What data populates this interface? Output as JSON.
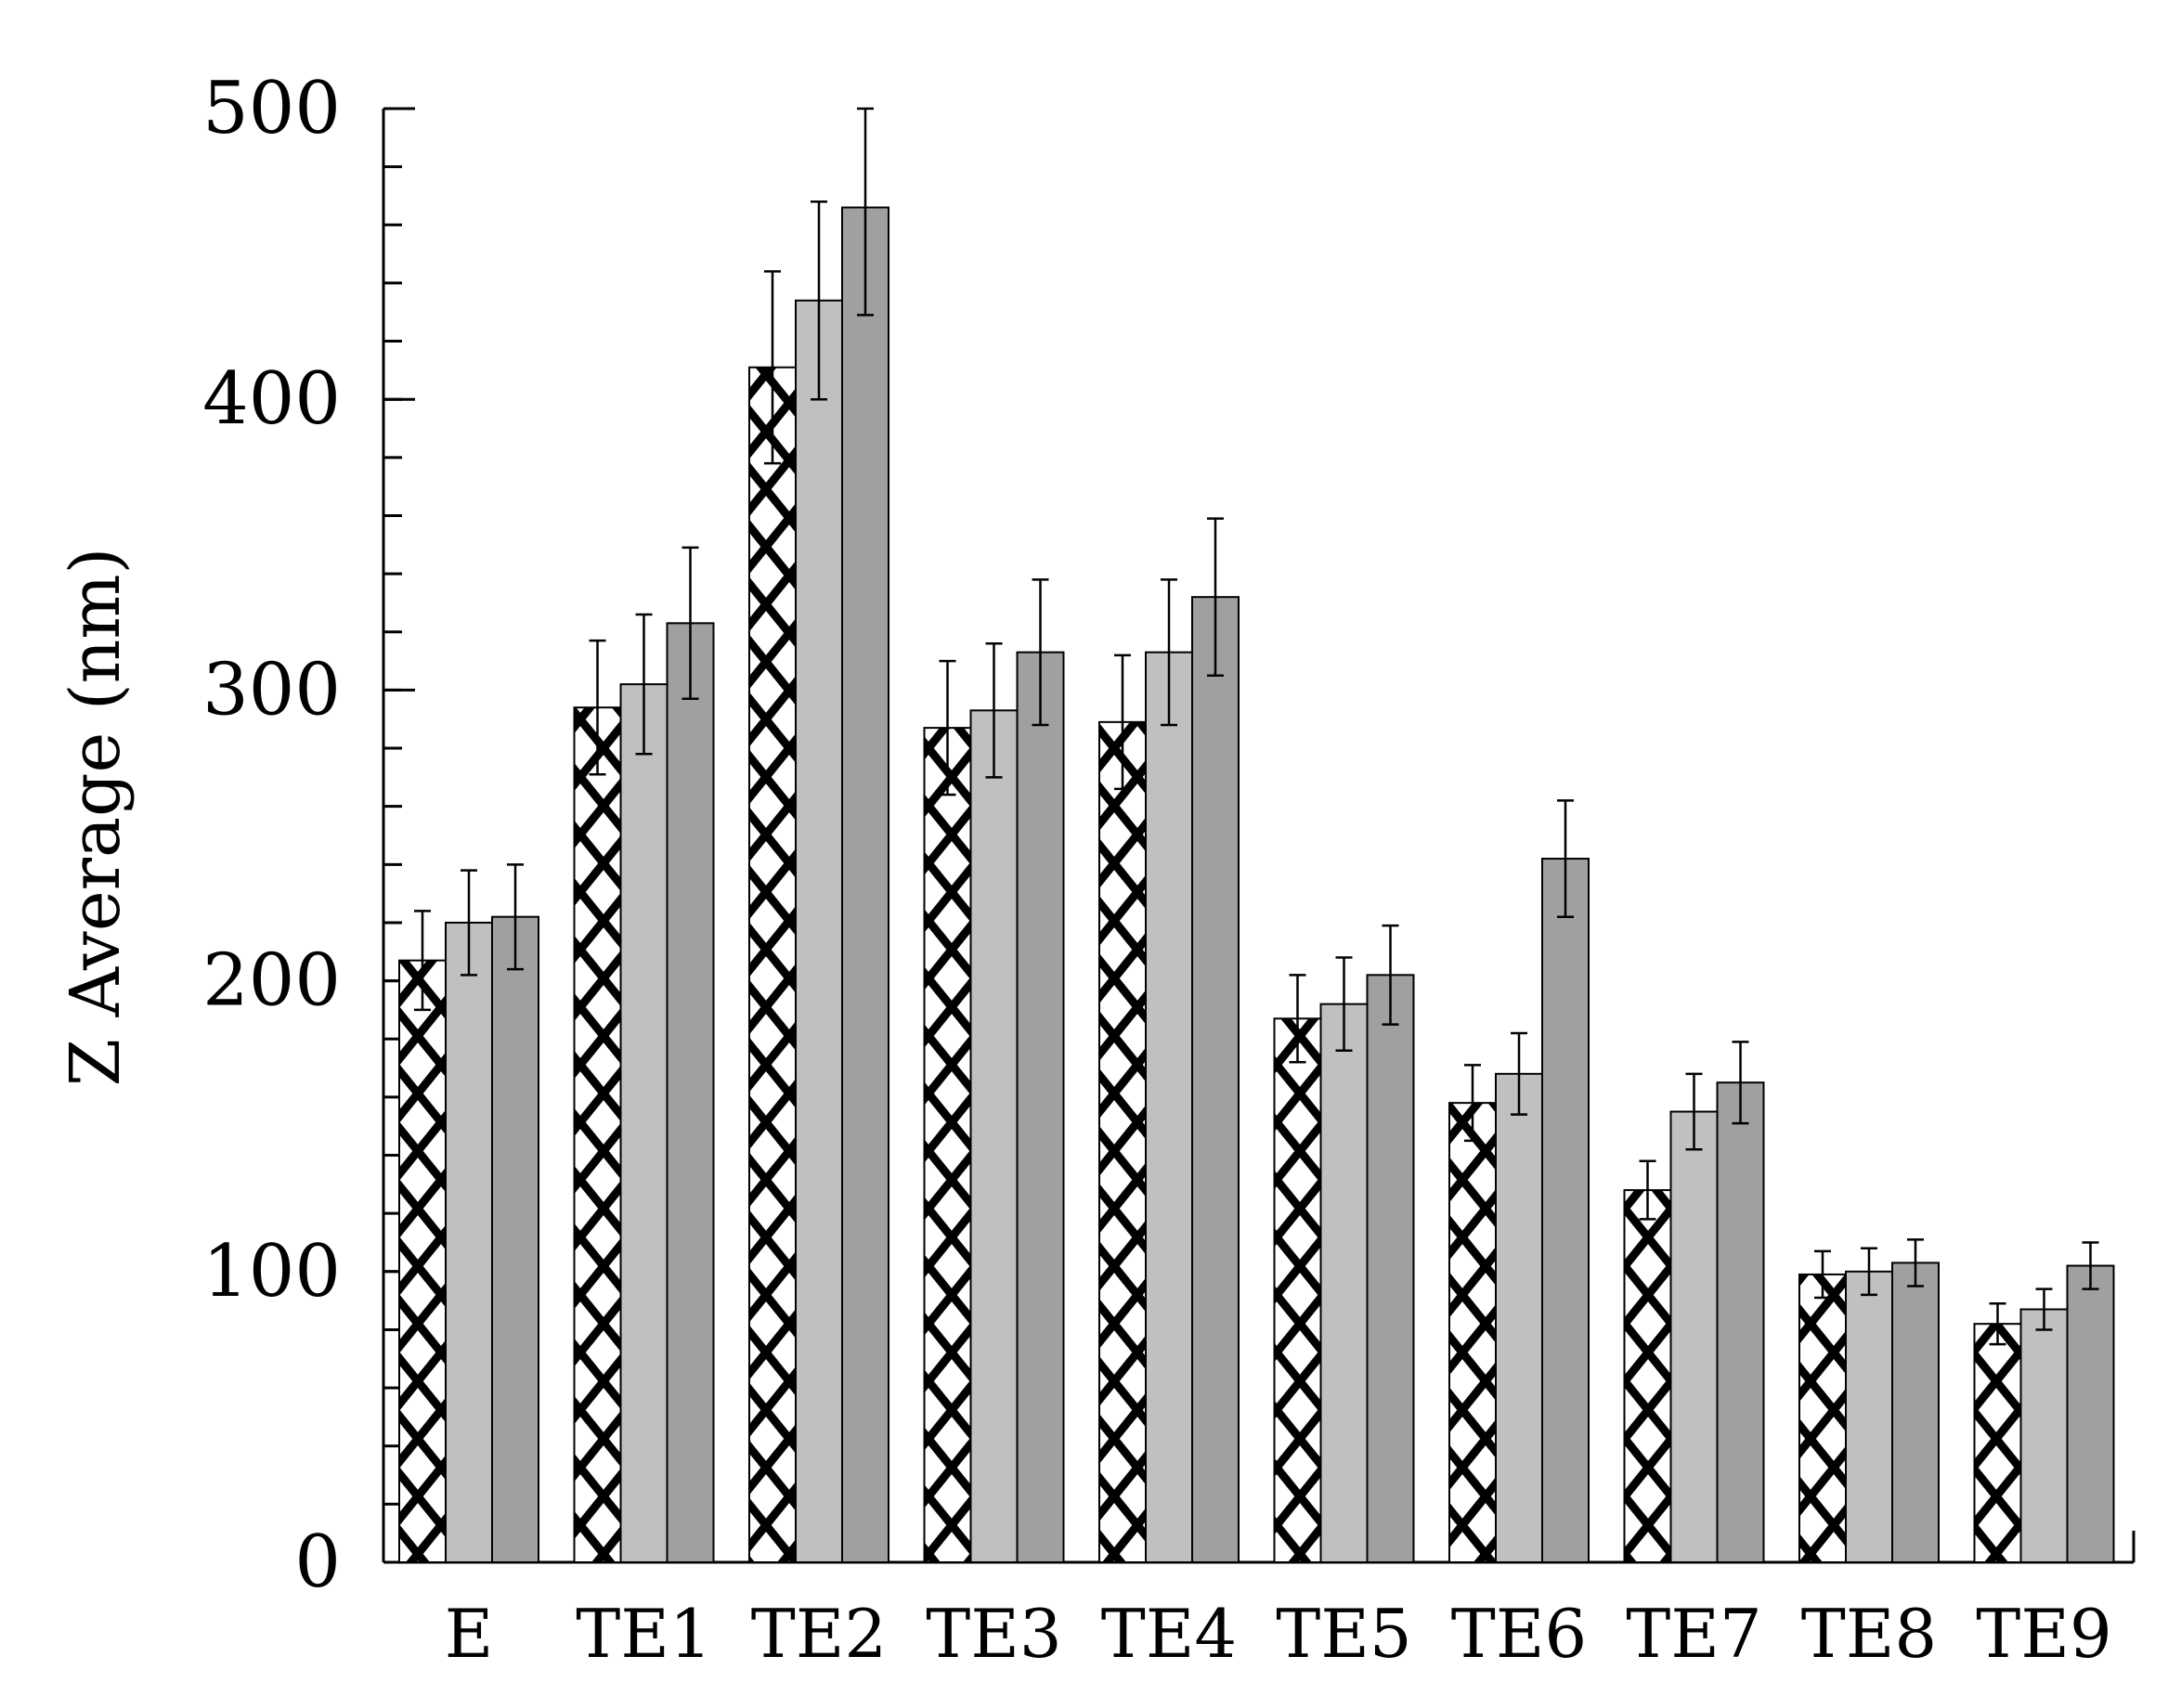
{
  "chart_data": {
    "type": "bar",
    "title": "",
    "xlabel": "",
    "ylabel": "Z Average (nm)",
    "ylim": [
      0,
      500
    ],
    "yticks": [
      "0",
      "100",
      "200",
      "300",
      "400",
      "500"
    ],
    "y_minor_step": 20,
    "grid": false,
    "categories": [
      "E",
      "TE1",
      "TE2",
      "TE3",
      "TE4",
      "TE5",
      "TE6",
      "TE7",
      "TE8",
      "TE9"
    ],
    "series": [
      {
        "pattern": "crosshatch",
        "color": "#ffffff",
        "values": [
          207,
          294,
          411,
          287,
          289,
          187,
          158,
          128,
          99,
          82
        ],
        "errors": [
          17,
          23,
          33,
          23,
          23,
          15,
          13,
          10,
          8,
          7
        ]
      },
      {
        "pattern": "solid",
        "color": "#c0c0c0",
        "values": [
          220,
          302,
          434,
          293,
          313,
          192,
          168,
          155,
          100,
          87
        ],
        "errors": [
          18,
          24,
          34,
          23,
          25,
          16,
          14,
          13,
          8,
          7
        ]
      },
      {
        "pattern": "solid",
        "color": "#a0a0a0",
        "values": [
          222,
          323,
          466,
          313,
          332,
          202,
          242,
          165,
          103,
          102
        ],
        "errors": [
          18,
          26,
          37,
          25,
          27,
          17,
          20,
          14,
          8,
          8
        ]
      }
    ]
  }
}
